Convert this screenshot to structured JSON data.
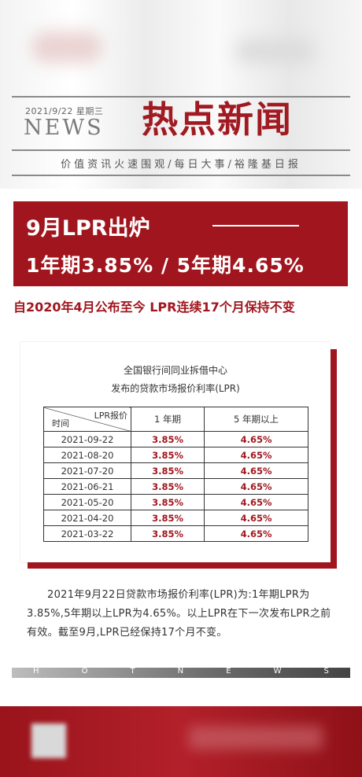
{
  "header": {
    "date": "2021/9/22  星期三",
    "news_word": "NEWS",
    "title": "热点新闻",
    "slogan": "价值资讯火速围观/每日大事/裕隆基日报"
  },
  "banner": {
    "line1": "9月LPR出炉",
    "line2": "1年期3.85% / 5年期4.65%"
  },
  "subheadline": "自2020年4月公布至今 LPR连续17个月保持不变",
  "card": {
    "title_line1": "全国银行间同业拆借中心",
    "title_line2": "发布的贷款市场报价利率(LPR)",
    "header_lpr": "LPR报价",
    "header_time": "时间",
    "col1": "1 年期",
    "col5": "5 年期以上",
    "rows": [
      {
        "date": "2021-09-22",
        "one_year": "3.85%",
        "five_year": "4.65%"
      },
      {
        "date": "2021-08-20",
        "one_year": "3.85%",
        "five_year": "4.65%"
      },
      {
        "date": "2021-07-20",
        "one_year": "3.85%",
        "five_year": "4.65%"
      },
      {
        "date": "2021-06-21",
        "one_year": "3.85%",
        "five_year": "4.65%"
      },
      {
        "date": "2021-05-20",
        "one_year": "3.85%",
        "five_year": "4.65%"
      },
      {
        "date": "2021-04-20",
        "one_year": "3.85%",
        "five_year": "4.65%"
      },
      {
        "date": "2021-03-22",
        "one_year": "3.85%",
        "five_year": "4.65%"
      }
    ]
  },
  "paragraph": "2021年9月22日贷款市场报价利率(LPR)为:1年期LPR为3.85%,5年期以上LPR为4.65%。以上LPR在下一次发布LPR之前有效。截至9月,LPR已经保持17个月不变。",
  "hotnews_letters": [
    "H",
    "O",
    "T",
    "N",
    "E",
    "W",
    "S"
  ],
  "colors": {
    "accent": "#a1161e"
  }
}
